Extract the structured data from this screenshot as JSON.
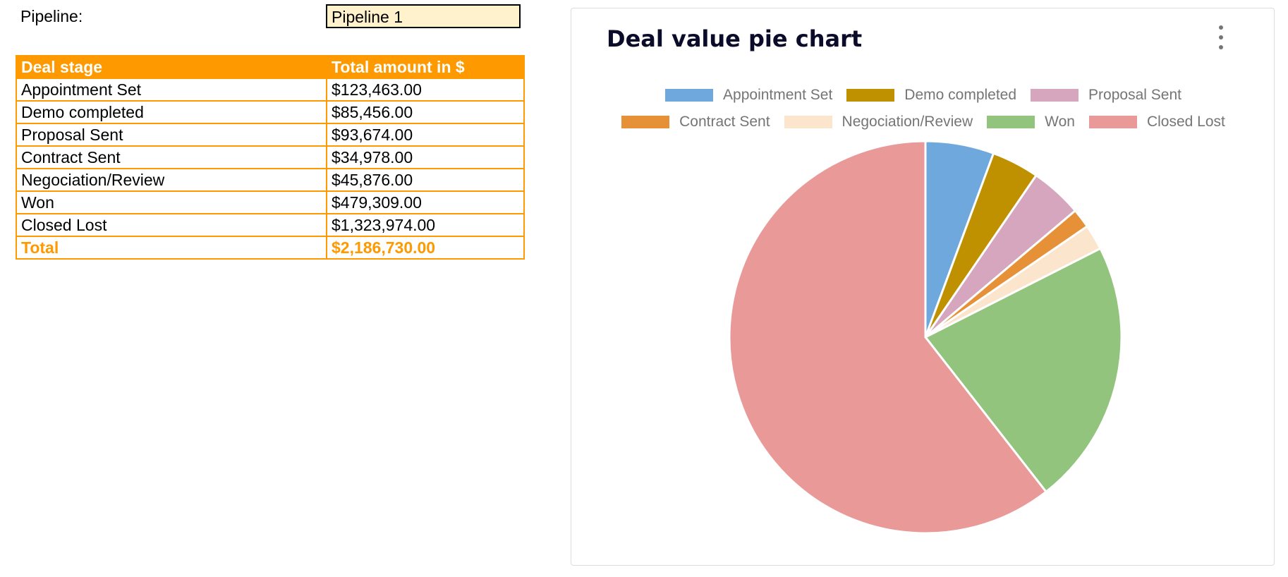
{
  "pipeline": {
    "label": "Pipeline:",
    "value": "Pipeline 1"
  },
  "table": {
    "headers": [
      "Deal stage",
      "Total amount in $"
    ],
    "rows": [
      [
        "Appointment Set",
        "$123,463.00"
      ],
      [
        "Demo completed",
        "$85,456.00"
      ],
      [
        "Proposal Sent",
        "$93,674.00"
      ],
      [
        "Contract Sent",
        "$34,978.00"
      ],
      [
        "Negociation/Review",
        "$45,876.00"
      ],
      [
        "Won",
        "$479,309.00"
      ],
      [
        "Closed Lost",
        "$1,323,974.00"
      ]
    ],
    "total": [
      "Total",
      "$2,186,730.00"
    ]
  },
  "colors": {
    "header_bg": "#ff9900",
    "total_text": "#ff9900",
    "pipeline_field_bg": "#fff2cc"
  },
  "chart_card": {
    "title": "Deal value pie chart",
    "menu_icon": "more-vert-icon"
  },
  "chart_data": {
    "type": "pie",
    "title": "Deal value pie chart",
    "legend_position": "top",
    "categories": [
      "Appointment Set",
      "Demo completed",
      "Proposal Sent",
      "Contract Sent",
      "Negociation/Review",
      "Won",
      "Closed Lost"
    ],
    "values": [
      123463,
      85456,
      93674,
      34978,
      45876,
      479309,
      1323974
    ],
    "colors": [
      "#6fa8dc",
      "#bf9000",
      "#d5a6bd",
      "#e69138",
      "#fce5cd",
      "#93c47d",
      "#ea9999"
    ]
  }
}
